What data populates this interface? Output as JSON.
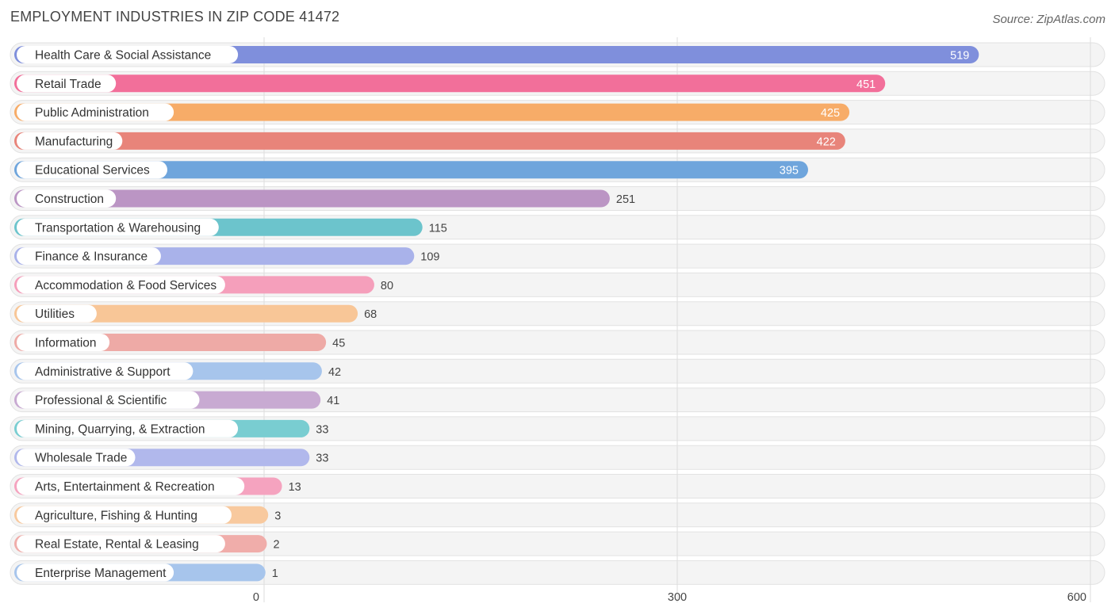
{
  "header": {
    "title": "EMPLOYMENT INDUSTRIES IN ZIP CODE 41472",
    "source": "Source: ZipAtlas.com"
  },
  "chart_data": {
    "type": "bar",
    "orientation": "horizontal",
    "title": "EMPLOYMENT INDUSTRIES IN ZIP CODE 41472",
    "categories": [
      "Health Care & Social Assistance",
      "Retail Trade",
      "Public Administration",
      "Manufacturing",
      "Educational Services",
      "Construction",
      "Transportation & Warehousing",
      "Finance & Insurance",
      "Accommodation & Food Services",
      "Utilities",
      "Information",
      "Administrative & Support",
      "Professional & Scientific",
      "Mining, Quarrying, & Extraction",
      "Wholesale Trade",
      "Arts, Entertainment & Recreation",
      "Agriculture, Fishing & Hunting",
      "Real Estate, Rental & Leasing",
      "Enterprise Management"
    ],
    "values": [
      519,
      451,
      425,
      422,
      395,
      251,
      115,
      109,
      80,
      68,
      45,
      42,
      41,
      33,
      33,
      13,
      3,
      2,
      1
    ],
    "colors": [
      "#7f8fdc",
      "#f26f9a",
      "#f7ac68",
      "#e8847a",
      "#6fa5dc",
      "#bb95c4",
      "#6cc4cc",
      "#a9b2ea",
      "#f59fbb",
      "#f8c697",
      "#eeaaa6",
      "#a7c5ec",
      "#c8aad2",
      "#79cdd1",
      "#b1b8ec",
      "#f5a3bf",
      "#f8c99e",
      "#f0adaa",
      "#a7c5ec"
    ],
    "xlim": [
      0,
      600
    ],
    "xticks": [
      0,
      300,
      600
    ],
    "tick_labels": [
      "0",
      "300",
      "600"
    ],
    "grid": true
  }
}
